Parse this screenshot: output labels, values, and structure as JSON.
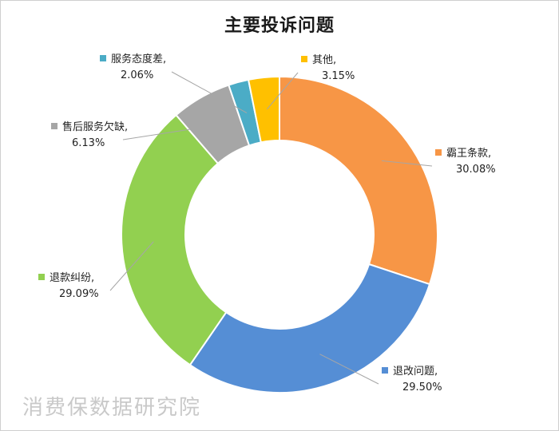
{
  "chart_data": {
    "type": "pie",
    "title": "主要投诉问题",
    "donut": true,
    "slices": [
      {
        "label": "霸王条款",
        "value": 30.08,
        "value_label": "30.08%",
        "color": "#F79646"
      },
      {
        "label": "退改问题",
        "value": 29.5,
        "value_label": "29.50%",
        "color": "#558ED5"
      },
      {
        "label": "退款纠纷",
        "value": 29.09,
        "value_label": "29.09%",
        "color": "#92D050"
      },
      {
        "label": "售后服务欠缺",
        "value": 6.13,
        "value_label": "6.13%",
        "color": "#A6A6A6"
      },
      {
        "label": "服务态度差",
        "value": 2.06,
        "value_label": "2.06%",
        "color": "#4BACC6"
      },
      {
        "label": "其他",
        "value": 3.15,
        "value_label": "3.15%",
        "color": "#FFC000"
      }
    ]
  },
  "watermark": "消费保数据研究院"
}
